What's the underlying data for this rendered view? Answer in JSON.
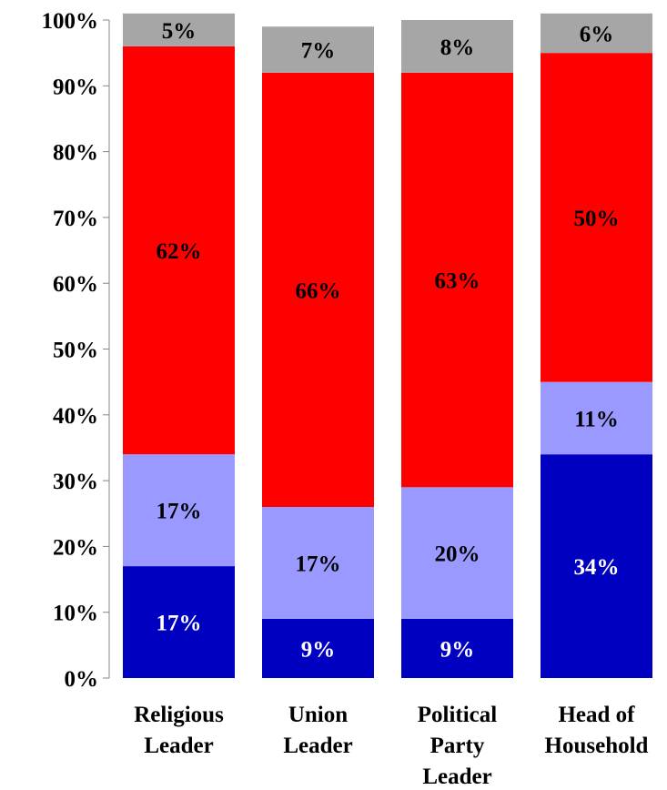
{
  "chart_data": {
    "type": "bar",
    "stacked": true,
    "percent_stacked": true,
    "title": "",
    "xlabel": "",
    "ylabel": "",
    "ylim": [
      0,
      100
    ],
    "yticks": [
      "0%",
      "10%",
      "20%",
      "30%",
      "40%",
      "50%",
      "60%",
      "70%",
      "80%",
      "90%",
      "100%"
    ],
    "categories": [
      [
        "Religious",
        "Leader"
      ],
      [
        "Union",
        "Leader"
      ],
      [
        "Political",
        "Party",
        "Leader"
      ],
      [
        "Head of",
        "Household"
      ]
    ],
    "series": [
      {
        "color": "#0000C0",
        "label_color": "#ffffff",
        "values": [
          17,
          9,
          9,
          34
        ],
        "labels": [
          "17%",
          "9%",
          "9%",
          "34%"
        ]
      },
      {
        "color": "#9999FF",
        "label_color": "#000000",
        "values": [
          17,
          17,
          20,
          11
        ],
        "labels": [
          "17%",
          "17%",
          "20%",
          "11%"
        ]
      },
      {
        "color": "#FF0000",
        "label_color": "#000000",
        "values": [
          62,
          66,
          63,
          50
        ],
        "labels": [
          "62%",
          "66%",
          "63%",
          "50%"
        ]
      },
      {
        "color": "#A6A6A6",
        "label_color": "#000000",
        "values": [
          5,
          7,
          8,
          6
        ],
        "labels": [
          "5%",
          "7%",
          "8%",
          "6%"
        ]
      }
    ],
    "grid": false,
    "legend": "none"
  }
}
